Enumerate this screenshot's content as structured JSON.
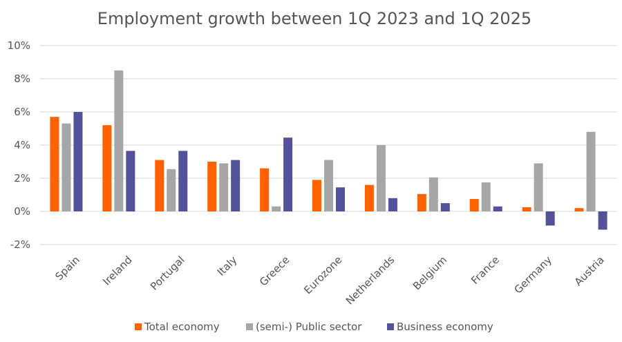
{
  "chart_data": {
    "type": "bar",
    "title": "Employment growth between 1Q 2023 and 1Q 2025",
    "xlabel": "",
    "ylabel": "",
    "ylim": [
      -2,
      10
    ],
    "yticks": [
      -2,
      0,
      2,
      4,
      6,
      8,
      10
    ],
    "ytick_labels": [
      "-2%",
      "0%",
      "2%",
      "4%",
      "6%",
      "8%",
      "10%"
    ],
    "grid": true,
    "legend_position": "bottom",
    "categories": [
      "Spain",
      "Ireland",
      "Portugal",
      "Italy",
      "Greece",
      "Eurozone",
      "Netherlands",
      "Belgium",
      "France",
      "Germany",
      "Austria"
    ],
    "series": [
      {
        "name": "Total economy",
        "color": "#ff6200",
        "values": [
          5.7,
          5.2,
          3.1,
          3.0,
          2.6,
          1.9,
          1.6,
          1.05,
          0.75,
          0.25,
          0.2
        ]
      },
      {
        "name": "(semi-) Public sector",
        "color": "#a6a6a6",
        "values": [
          5.3,
          8.5,
          2.55,
          2.9,
          0.3,
          3.1,
          4.0,
          2.05,
          1.75,
          2.9,
          4.8
        ]
      },
      {
        "name": "Business economy",
        "color": "#525199",
        "values": [
          6.0,
          3.65,
          3.65,
          3.1,
          4.45,
          1.45,
          0.8,
          0.5,
          0.3,
          -0.85,
          -1.1
        ]
      }
    ]
  }
}
